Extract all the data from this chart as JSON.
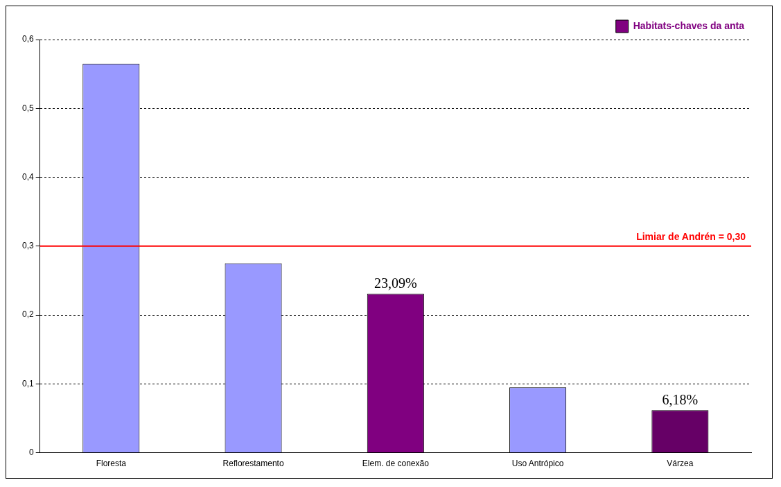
{
  "chart_data": {
    "type": "bar",
    "categories": [
      "Floresta",
      "Reflorestamento",
      "Elem. de conexão",
      "Uso Antrópico",
      "Várzea"
    ],
    "series": [
      {
        "values": [
          0.565,
          0.275,
          null,
          0.095,
          null
        ],
        "color": "#9999ff"
      },
      {
        "name": "Habitats-chaves da anta",
        "color": "#800080",
        "colors": [
          null,
          null,
          "#800080",
          null,
          "#660066"
        ],
        "values": [
          null,
          null,
          0.2309,
          null,
          0.0618
        ],
        "value_labels": [
          null,
          null,
          "23,09%",
          null,
          "6,18%"
        ]
      }
    ],
    "ylim": [
      0,
      0.6
    ],
    "yticks": [
      0,
      {
        "value": 0.1,
        "label": "0,1"
      },
      {
        "value": 0.2,
        "label": "0,2"
      },
      {
        "value": 0.3,
        "label": "0,3"
      },
      {
        "value": 0.4,
        "label": "0,4"
      },
      {
        "value": 0.5,
        "label": "0,5"
      },
      {
        "value": 0.6,
        "label": "0,6"
      }
    ],
    "grid": "y",
    "legend": "top right",
    "ref_lines": [
      {
        "axis": "y",
        "value": 0.3,
        "label": "Limiar de Andrén = 0,30",
        "color": "#ff0000"
      }
    ]
  }
}
